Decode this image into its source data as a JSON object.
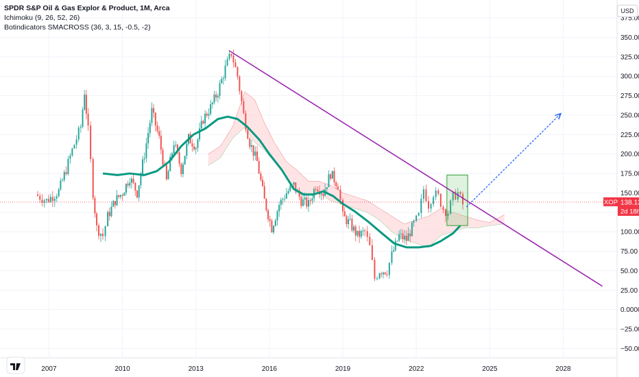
{
  "legend": {
    "title": "SPDR S&P Oil & Gas Explor & Product, 1M, Arca",
    "ichimoku": "Ichimoku (9, 26, 52, 26)",
    "smacross": "Botindicators SMACROSS (36, 3, 15, -0.5, -2)"
  },
  "currency_label": "USD",
  "price_tag": {
    "symbol": "XOP",
    "price": "138.13",
    "countdown": "2d 18h",
    "value": 138.13
  },
  "colors": {
    "up": "#26a69a",
    "down": "#ef5350",
    "price_line": "#f23645",
    "trendline": "#9c27b0",
    "projection": "#2962ff",
    "sma": "#089981",
    "cloud_bull": "#c8e6c9",
    "cloud_bear": "#ffcdd2"
  },
  "chart_data": {
    "type": "candlestick",
    "title": "SPDR S&P Oil & Gas Explor & Product, 1M, Arca",
    "xlabel": "",
    "ylabel": "",
    "x_ticks": [
      "2007",
      "2010",
      "2013",
      "2016",
      "2019",
      "2022",
      "2025",
      "2028"
    ],
    "y_ticks": [
      "375.00",
      "350.00",
      "325.00",
      "300.00",
      "275.00",
      "250.00",
      "225.00",
      "200.00",
      "175.00",
      "150.00",
      "125.00",
      "100.00",
      "75.00",
      "50.00",
      "25.00",
      "0.0000",
      "−25.00",
      "−50.00"
    ],
    "ylim": [
      -62,
      398
    ],
    "xlim": [
      2005.0,
      2030.2
    ],
    "grid": true,
    "close_path": [
      [
        2006.45,
        148
      ],
      [
        2006.9,
        140
      ],
      [
        2007.4,
        152
      ],
      [
        2007.7,
        180
      ],
      [
        2007.95,
        205
      ],
      [
        2008.3,
        235
      ],
      [
        2008.45,
        280
      ],
      [
        2008.6,
        230
      ],
      [
        2008.8,
        150
      ],
      [
        2008.95,
        105
      ],
      [
        2009.2,
        95
      ],
      [
        2009.4,
        120
      ],
      [
        2009.7,
        140
      ],
      [
        2010.0,
        150
      ],
      [
        2010.3,
        170
      ],
      [
        2010.6,
        150
      ],
      [
        2010.9,
        200
      ],
      [
        2011.2,
        255
      ],
      [
        2011.5,
        220
      ],
      [
        2011.8,
        165
      ],
      [
        2012.1,
        215
      ],
      [
        2012.4,
        180
      ],
      [
        2012.7,
        220
      ],
      [
        2013.0,
        210
      ],
      [
        2013.3,
        245
      ],
      [
        2013.6,
        260
      ],
      [
        2013.9,
        280
      ],
      [
        2014.2,
        310
      ],
      [
        2014.45,
        330
      ],
      [
        2014.7,
        300
      ],
      [
        2014.95,
        250
      ],
      [
        2015.2,
        215
      ],
      [
        2015.5,
        190
      ],
      [
        2015.8,
        140
      ],
      [
        2016.1,
        105
      ],
      [
        2016.4,
        135
      ],
      [
        2016.7,
        150
      ],
      [
        2017.0,
        160
      ],
      [
        2017.3,
        140
      ],
      [
        2017.6,
        135
      ],
      [
        2017.9,
        160
      ],
      [
        2018.2,
        150
      ],
      [
        2018.5,
        175
      ],
      [
        2018.8,
        160
      ],
      [
        2019.0,
        120
      ],
      [
        2019.3,
        110
      ],
      [
        2019.6,
        95
      ],
      [
        2019.9,
        100
      ],
      [
        2020.1,
        80
      ],
      [
        2020.3,
        40
      ],
      [
        2020.5,
        50
      ],
      [
        2020.8,
        50
      ],
      [
        2021.0,
        70
      ],
      [
        2021.3,
        95
      ],
      [
        2021.6,
        90
      ],
      [
        2021.9,
        110
      ],
      [
        2022.1,
        120
      ],
      [
        2022.3,
        155
      ],
      [
        2022.5,
        135
      ],
      [
        2022.7,
        150
      ],
      [
        2022.9,
        145
      ],
      [
        2023.1,
        130
      ],
      [
        2023.3,
        125
      ],
      [
        2023.5,
        145
      ],
      [
        2023.7,
        150
      ],
      [
        2023.9,
        135
      ]
    ],
    "sma_line": [
      [
        2009.2,
        175
      ],
      [
        2009.8,
        173
      ],
      [
        2010.3,
        175
      ],
      [
        2010.9,
        173
      ],
      [
        2011.4,
        178
      ],
      [
        2011.9,
        190
      ],
      [
        2012.4,
        210
      ],
      [
        2012.9,
        225
      ],
      [
        2013.4,
        233
      ],
      [
        2013.9,
        245
      ],
      [
        2014.3,
        248
      ],
      [
        2014.7,
        245
      ],
      [
        2015.1,
        235
      ],
      [
        2015.6,
        218
      ],
      [
        2016.0,
        200
      ],
      [
        2016.5,
        180
      ],
      [
        2017.0,
        155
      ],
      [
        2017.4,
        148
      ],
      [
        2017.8,
        148
      ],
      [
        2018.2,
        152
      ],
      [
        2018.6,
        146
      ],
      [
        2019.0,
        136
      ],
      [
        2019.5,
        126
      ],
      [
        2020.0,
        114
      ],
      [
        2020.6,
        98
      ],
      [
        2021.1,
        85
      ],
      [
        2021.6,
        80
      ],
      [
        2022.1,
        80
      ],
      [
        2022.6,
        82
      ],
      [
        2023.0,
        88
      ],
      [
        2023.5,
        98
      ],
      [
        2023.8,
        108
      ]
    ],
    "cloud": [
      [
        2013.5,
        200,
        185
      ],
      [
        2014.0,
        210,
        195
      ],
      [
        2014.5,
        235,
        220
      ],
      [
        2015.0,
        280,
        235
      ],
      [
        2015.4,
        270,
        215
      ],
      [
        2015.8,
        240,
        205
      ],
      [
        2016.2,
        215,
        190
      ],
      [
        2016.7,
        190,
        170
      ],
      [
        2017.1,
        180,
        150
      ],
      [
        2017.6,
        165,
        150
      ],
      [
        2018.0,
        165,
        150
      ],
      [
        2018.5,
        160,
        140
      ],
      [
        2019.0,
        150,
        135
      ],
      [
        2019.5,
        145,
        130
      ],
      [
        2020.0,
        140,
        125
      ],
      [
        2020.5,
        130,
        115
      ],
      [
        2021.0,
        120,
        100
      ],
      [
        2021.5,
        110,
        90
      ],
      [
        2022.0,
        115,
        85
      ],
      [
        2022.5,
        120,
        80
      ],
      [
        2023.0,
        130,
        95
      ],
      [
        2023.5,
        125,
        100
      ],
      [
        2024.0,
        120,
        105
      ],
      [
        2024.5,
        115,
        105
      ],
      [
        2025.0,
        112,
        108
      ],
      [
        2025.6,
        122,
        110
      ]
    ],
    "trendline": [
      [
        2014.35,
        333
      ],
      [
        2029.6,
        30
      ]
    ],
    "projection": [
      [
        2024.05,
        132
      ],
      [
        2027.9,
        252
      ]
    ],
    "target_box": {
      "x0": 2023.25,
      "x1": 2024.1,
      "y_bottom": 108,
      "y_top": 173
    },
    "last_price": 138.13
  }
}
